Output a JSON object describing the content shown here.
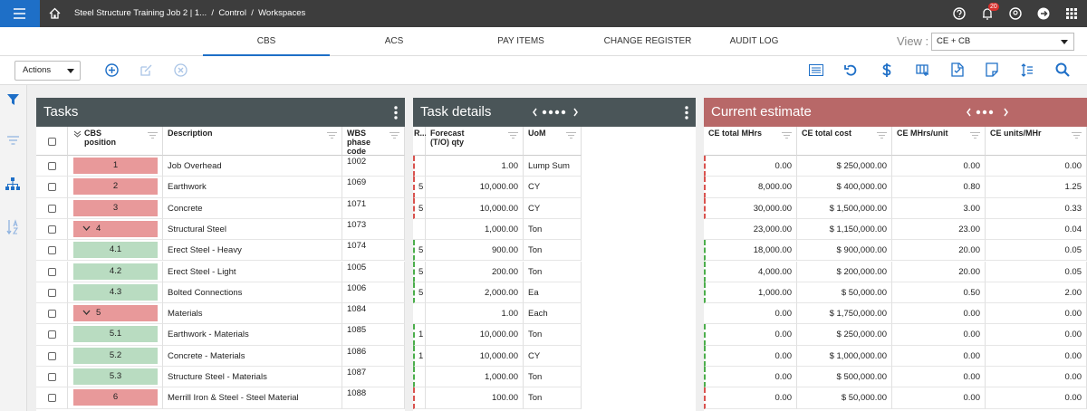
{
  "top_bar": {
    "breadcrumb": [
      "Steel Structure Training Job 2 | 1...",
      "Control",
      "Workspaces"
    ],
    "separator": "/",
    "notification_count": "20"
  },
  "tabs": {
    "items": [
      "CBS",
      "ACS",
      "PAY ITEMS",
      "CHANGE REGISTER",
      "AUDIT LOG"
    ],
    "active": 0,
    "view_label": "View :",
    "view_value": "CE + CB"
  },
  "toolbar": {
    "actions": "Actions"
  },
  "tasks": {
    "title": "Tasks",
    "columns": [
      "CBS position",
      "Description",
      "WBS phase code"
    ]
  },
  "task_details": {
    "title": "Task details",
    "columns": [
      "R...",
      "Forecast (T/O) qty",
      "UoM"
    ]
  },
  "current_estimate": {
    "title": "Current estimate",
    "columns": [
      "CE total MHrs",
      "CE total cost",
      "CE MHrs/unit",
      "CE units/MHr"
    ]
  },
  "rows": [
    {
      "position": "1",
      "color": "#e8999a",
      "expanded": false,
      "description": "Job Overhead",
      "wbs": "1002",
      "r": null,
      "qty": "1.00",
      "uom": "Lump Sum",
      "ce_mhrs": "0.00",
      "ce_cost": "$ 250,000.00",
      "ce_mhrs_unit": "0.00",
      "ce_units_mhr": "0.00"
    },
    {
      "position": "2",
      "color": "#e8999a",
      "expanded": false,
      "description": "Earthwork",
      "wbs": "1069",
      "r": "5",
      "qty": "10,000.00",
      "uom": "CY",
      "ce_mhrs": "8,000.00",
      "ce_cost": "$ 400,000.00",
      "ce_mhrs_unit": "0.80",
      "ce_units_mhr": "1.25"
    },
    {
      "position": "3",
      "color": "#e8999a",
      "expanded": false,
      "description": "Concrete",
      "wbs": "1071",
      "r": "5",
      "qty": "10,000.00",
      "uom": "CY",
      "ce_mhrs": "30,000.00",
      "ce_cost": "$ 1,500,000.00",
      "ce_mhrs_unit": "3.00",
      "ce_units_mhr": "0.33"
    },
    {
      "position": "4",
      "color": "#e8999a",
      "expanded": true,
      "description": "Structural Steel",
      "wbs": "1073",
      "r": null,
      "qty": "1,000.00",
      "uom": "Ton",
      "ce_mhrs": "23,000.00",
      "ce_cost": "$ 1,150,000.00",
      "ce_mhrs_unit": "23.00",
      "ce_units_mhr": "0.04"
    },
    {
      "position": "4.1",
      "color": "#b9dcc1",
      "expanded": false,
      "description": "Erect Steel - Heavy",
      "wbs": "1074",
      "r": "5",
      "qty": "900.00",
      "uom": "Ton",
      "ce_mhrs": "18,000.00",
      "ce_cost": "$ 900,000.00",
      "ce_mhrs_unit": "20.00",
      "ce_units_mhr": "0.05"
    },
    {
      "position": "4.2",
      "color": "#b9dcc1",
      "expanded": false,
      "description": "Erect Steel - Light",
      "wbs": "1005",
      "r": "5",
      "qty": "200.00",
      "uom": "Ton",
      "ce_mhrs": "4,000.00",
      "ce_cost": "$ 200,000.00",
      "ce_mhrs_unit": "20.00",
      "ce_units_mhr": "0.05"
    },
    {
      "position": "4.3",
      "color": "#b9dcc1",
      "expanded": false,
      "description": "Bolted Connections",
      "wbs": "1006",
      "r": "5",
      "qty": "2,000.00",
      "uom": "Ea",
      "ce_mhrs": "1,000.00",
      "ce_cost": "$ 50,000.00",
      "ce_mhrs_unit": "0.50",
      "ce_units_mhr": "2.00"
    },
    {
      "position": "5",
      "color": "#e8999a",
      "expanded": true,
      "description": "Materials",
      "wbs": "1084",
      "r": null,
      "qty": "1.00",
      "uom": "Each",
      "ce_mhrs": "0.00",
      "ce_cost": "$ 1,750,000.00",
      "ce_mhrs_unit": "0.00",
      "ce_units_mhr": "0.00"
    },
    {
      "position": "5.1",
      "color": "#b9dcc1",
      "expanded": false,
      "description": "Earthwork - Materials",
      "wbs": "1085",
      "r": "1",
      "qty": "10,000.00",
      "uom": "Ton",
      "ce_mhrs": "0.00",
      "ce_cost": "$ 250,000.00",
      "ce_mhrs_unit": "0.00",
      "ce_units_mhr": "0.00"
    },
    {
      "position": "5.2",
      "color": "#b9dcc1",
      "expanded": false,
      "description": "Concrete - Materials",
      "wbs": "1086",
      "r": "1",
      "qty": "10,000.00",
      "uom": "CY",
      "ce_mhrs": "0.00",
      "ce_cost": "$ 1,000,000.00",
      "ce_mhrs_unit": "0.00",
      "ce_units_mhr": "0.00"
    },
    {
      "position": "5.3",
      "color": "#b9dcc1",
      "expanded": false,
      "description": "Structure Steel - Materials",
      "wbs": "1087",
      "r": null,
      "qty": "1,000.00",
      "uom": "Ton",
      "ce_mhrs": "0.00",
      "ce_cost": "$ 500,000.00",
      "ce_mhrs_unit": "0.00",
      "ce_units_mhr": "0.00"
    },
    {
      "position": "6",
      "color": "#e8999a",
      "expanded": false,
      "description": "Merrill Iron & Steel - Steel Material",
      "wbs": "1088",
      "r": null,
      "qty": "100.00",
      "uom": "Ton",
      "ce_mhrs": "0.00",
      "ce_cost": "$ 50,000.00",
      "ce_mhrs_unit": "0.00",
      "ce_units_mhr": "0.00"
    }
  ]
}
